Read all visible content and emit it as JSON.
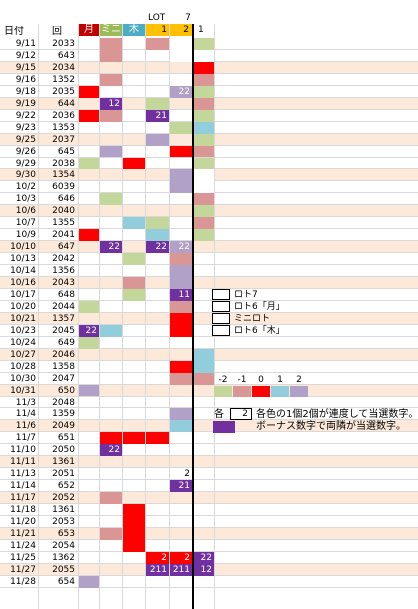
{
  "colors": {
    "green": "#c4d79b",
    "pink": "#da9694",
    "red": "#ff0000",
    "lightblue": "#92cddc",
    "purple": "#b1a0c7",
    "darkpurple": "#7030a0",
    "gold": "#ffc000",
    "peach": "#fde9d9",
    "white": "#ffffff"
  },
  "header": {
    "date_label": "日付",
    "round_label": "回",
    "tsuki": "月",
    "mini": "ミニ",
    "moku": "木",
    "lot": "LOT",
    "seven": "7",
    "one": "1",
    "two": "2",
    "one_extra": "1"
  },
  "rows": [
    {
      "d": "9/11",
      "r": "2033",
      "c": [
        "",
        "p",
        "",
        "p",
        "w",
        "g"
      ]
    },
    {
      "d": "9/12",
      "r": "643",
      "c": [
        "",
        "p",
        "",
        "",
        "w",
        "w"
      ]
    },
    {
      "d": "9/15",
      "r": "2034",
      "c": [
        "",
        "",
        "",
        "",
        "",
        "r"
      ]
    },
    {
      "d": "9/16",
      "r": "1352",
      "c": [
        "",
        "p",
        "",
        "",
        "w",
        "p"
      ]
    },
    {
      "d": "9/18",
      "r": "2035",
      "c": [
        "r",
        "",
        "",
        "",
        "v:22",
        "g"
      ]
    },
    {
      "d": "9/19",
      "r": "644",
      "c": [
        "",
        "V:12",
        "",
        "g",
        "",
        "p"
      ]
    },
    {
      "d": "9/22",
      "r": "2036",
      "c": [
        "r",
        "p",
        "",
        "V:21",
        "",
        "g"
      ]
    },
    {
      "d": "9/23",
      "r": "1353",
      "c": [
        "",
        "",
        "",
        "",
        "g",
        "b"
      ]
    },
    {
      "d": "9/25",
      "r": "2037",
      "c": [
        "",
        "",
        "",
        "v",
        "",
        "g"
      ]
    },
    {
      "d": "9/26",
      "r": "645",
      "c": [
        "",
        "v",
        "",
        "",
        "r",
        "p"
      ]
    },
    {
      "d": "9/29",
      "r": "2038",
      "c": [
        "g",
        "",
        "r",
        "",
        "",
        "g"
      ]
    },
    {
      "d": "9/30",
      "r": "1354",
      "c": [
        "",
        "",
        "",
        "",
        "v",
        "w"
      ]
    },
    {
      "d": "10/2",
      "r": "6039",
      "c": [
        "",
        "",
        "",
        "",
        "v",
        "w"
      ]
    },
    {
      "d": "10/3",
      "r": "646",
      "c": [
        "",
        "g",
        "",
        "",
        "",
        "p"
      ]
    },
    {
      "d": "10/6",
      "r": "2040",
      "c": [
        "",
        "",
        "",
        "",
        "",
        "g"
      ]
    },
    {
      "d": "10/7",
      "r": "1355",
      "c": [
        "",
        "",
        "b",
        "g",
        "",
        "p"
      ]
    },
    {
      "d": "10/9",
      "r": "2041",
      "c": [
        "r",
        "",
        "",
        "b",
        "",
        "g"
      ]
    },
    {
      "d": "10/10",
      "r": "647",
      "c": [
        "",
        "V:22",
        "",
        "V:22",
        "v:22",
        ""
      ]
    },
    {
      "d": "10/13",
      "r": "2042",
      "c": [
        "",
        "",
        "g",
        "",
        "p",
        ""
      ]
    },
    {
      "d": "10/14",
      "r": "1356",
      "c": [
        "",
        "",
        "",
        "",
        "v",
        ""
      ]
    },
    {
      "d": "10/16",
      "r": "2043",
      "c": [
        "",
        "",
        "p",
        "",
        "v",
        ""
      ]
    },
    {
      "d": "10/17",
      "r": "648",
      "c": [
        "",
        "",
        "g",
        "",
        "V:11",
        ""
      ]
    },
    {
      "d": "10/20",
      "r": "2044",
      "c": [
        "g",
        "",
        "",
        "",
        "p",
        ""
      ]
    },
    {
      "d": "10/21",
      "r": "1357",
      "c": [
        "",
        "",
        "",
        "",
        "r",
        ""
      ]
    },
    {
      "d": "10/23",
      "r": "2045",
      "c": [
        "V:22",
        "b",
        "",
        "",
        "r",
        ""
      ]
    },
    {
      "d": "10/24",
      "r": "649",
      "c": [
        "g",
        "",
        "",
        "",
        "",
        ""
      ]
    },
    {
      "d": "10/27",
      "r": "2046",
      "c": [
        "",
        "",
        "",
        "",
        "",
        "b"
      ]
    },
    {
      "d": "10/28",
      "r": "1358",
      "c": [
        "",
        "",
        "",
        "",
        "r",
        "b"
      ]
    },
    {
      "d": "10/30",
      "r": "2047",
      "c": [
        "",
        "",
        "",
        "",
        "p",
        "p"
      ]
    },
    {
      "d": "10/31",
      "r": "650",
      "c": [
        "v",
        "",
        "",
        "",
        "",
        ""
      ]
    },
    {
      "d": "11/3",
      "r": "2048",
      "c": [
        "",
        "",
        "",
        "",
        "",
        ""
      ]
    },
    {
      "d": "11/4",
      "r": "1359",
      "c": [
        "",
        "",
        "",
        "",
        "v",
        ""
      ]
    },
    {
      "d": "11/6",
      "r": "2049",
      "c": [
        "",
        "",
        "",
        "",
        "b",
        ""
      ]
    },
    {
      "d": "11/7",
      "r": "651",
      "c": [
        "",
        "r",
        "r",
        "r",
        "",
        ""
      ]
    },
    {
      "d": "11/10",
      "r": "2050",
      "c": [
        "",
        "V:22",
        "",
        "",
        "",
        ""
      ]
    },
    {
      "d": "11/11",
      "r": "1361",
      "c": [
        "",
        "",
        "",
        "",
        "",
        ""
      ]
    },
    {
      "d": "11/13",
      "r": "2051",
      "c": [
        "",
        "",
        "",
        "",
        "2",
        ""
      ]
    },
    {
      "d": "11/14",
      "r": "652",
      "c": [
        "",
        "",
        "",
        "",
        "V:21",
        ""
      ]
    },
    {
      "d": "11/17",
      "r": "2052",
      "c": [
        "",
        "p",
        "",
        "",
        "",
        ""
      ]
    },
    {
      "d": "11/18",
      "r": "1361",
      "c": [
        "",
        "",
        "r",
        "",
        "",
        ""
      ]
    },
    {
      "d": "11/20",
      "r": "2053",
      "c": [
        "",
        "",
        "r",
        "",
        "",
        ""
      ]
    },
    {
      "d": "11/21",
      "r": "653",
      "c": [
        "",
        "p",
        "r",
        "",
        "",
        ""
      ]
    },
    {
      "d": "11/24",
      "r": "2054",
      "c": [
        "",
        "",
        "r",
        "",
        "",
        ""
      ]
    },
    {
      "d": "11/25",
      "r": "1362",
      "c": [
        "",
        "",
        "",
        "R:2",
        "R:2",
        "V:22"
      ]
    },
    {
      "d": "11/27",
      "r": "2055",
      "c": [
        "",
        "",
        "",
        "V:211",
        "V:211",
        "V:12"
      ]
    },
    {
      "d": "11/28",
      "r": "654",
      "c": [
        "v",
        "",
        "",
        "",
        "",
        ""
      ]
    }
  ],
  "legend": {
    "loto7": "ロト7",
    "loto6_tsuki": "ロト6「月」",
    "miniloto": "ミニロト",
    "loto6_moku": "ロト6「木」",
    "diff_labels": [
      "-2",
      "-1",
      "0",
      "1",
      "2"
    ],
    "each_label": "各",
    "count_value": "2",
    "note1": "各色の1個2個が連度して当選数字。",
    "note2": "ボーナス数字で両隣が当選数字。"
  }
}
